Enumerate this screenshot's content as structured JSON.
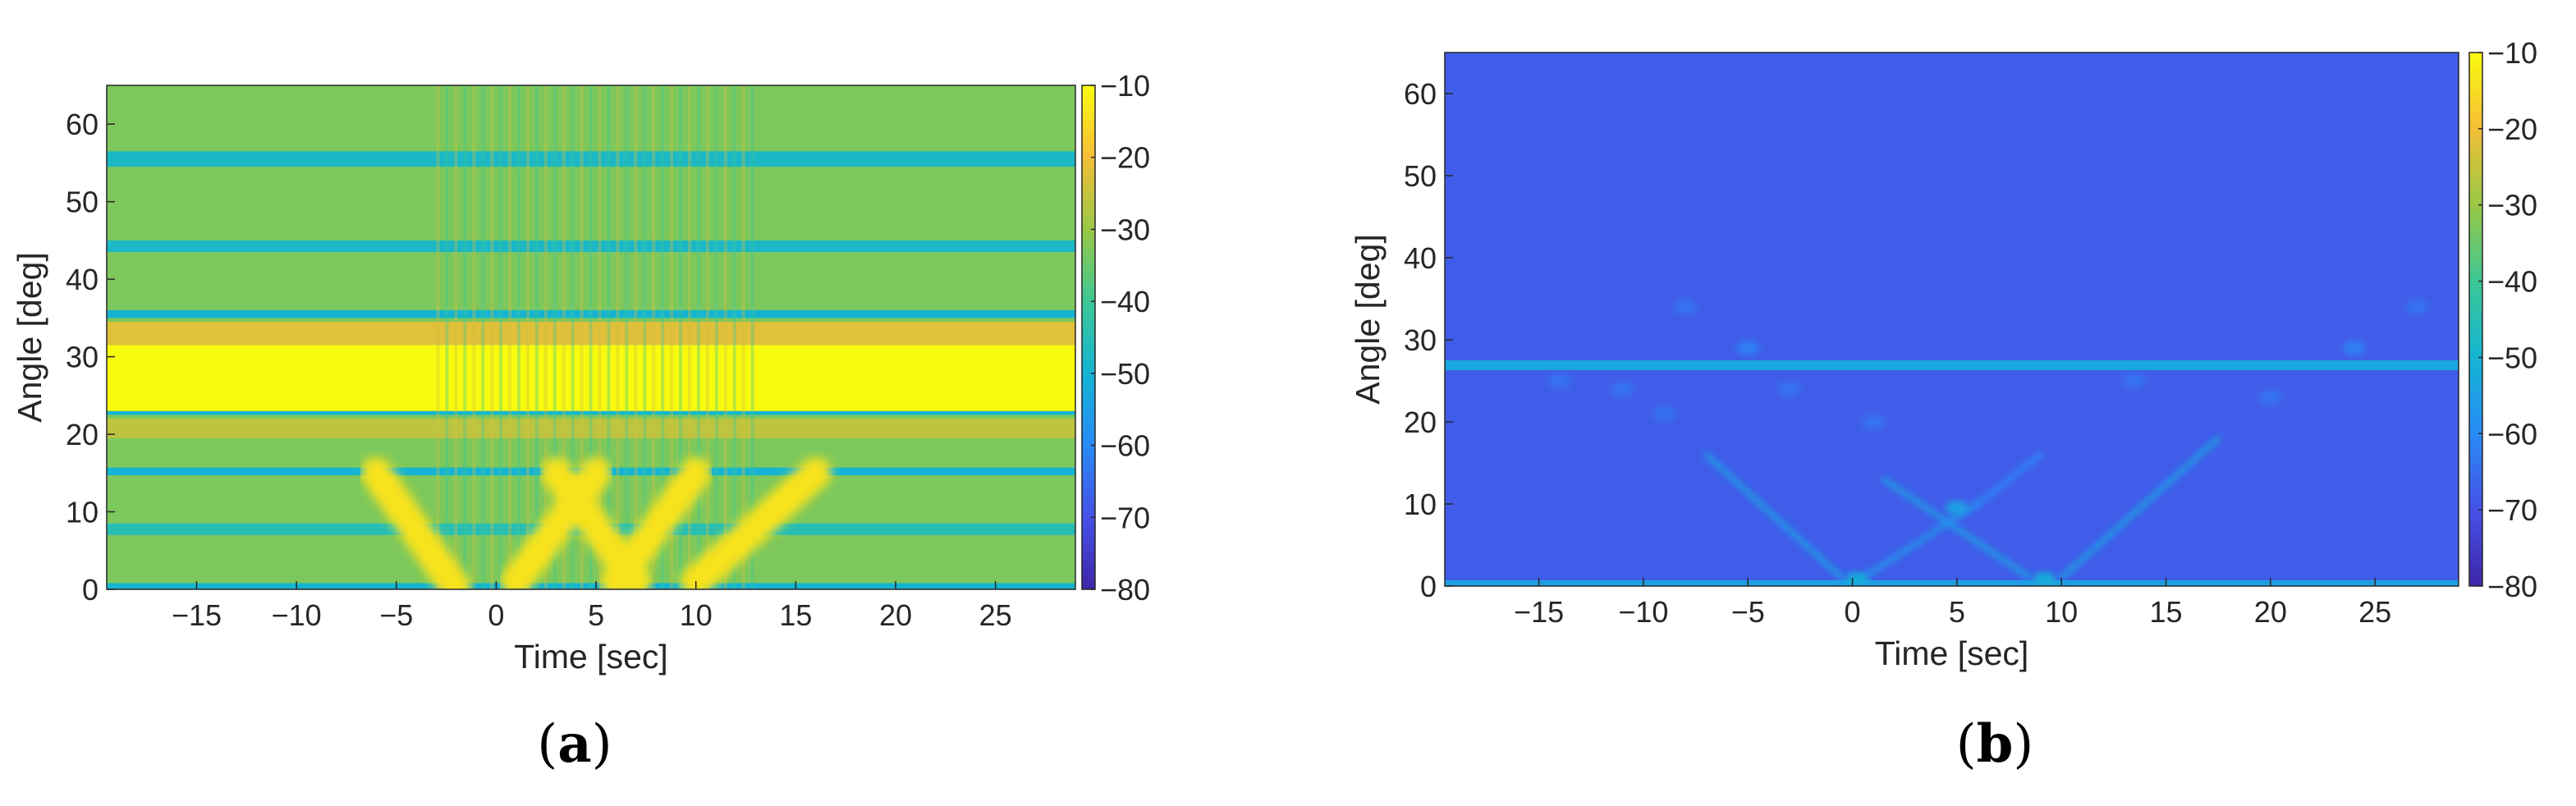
{
  "colors": {
    "parula_low": "#3e26a8",
    "parula_mid_blue": "#2d8bf5",
    "parula_teal": "#1cb0b5",
    "parula_green": "#7fca5a",
    "parula_orange": "#f5b73a",
    "parula_high": "#f9fb0e",
    "axis": "#262626"
  },
  "chart_data": [
    {
      "type": "heatmap",
      "panel_label_open": "(",
      "panel_label_letter": "a",
      "panel_label_close": ")",
      "xlabel": "Time [sec]",
      "ylabel": "Angle [deg]",
      "xlim": [
        -19.5,
        29
      ],
      "ylim": [
        0,
        65
      ],
      "x_ticks": [
        -15,
        -10,
        -5,
        0,
        5,
        10,
        15,
        20,
        25
      ],
      "x_tick_labels": [
        "−15",
        "−10",
        "−5",
        "0",
        "5",
        "10",
        "15",
        "20",
        "25"
      ],
      "y_ticks": [
        0,
        10,
        20,
        30,
        40,
        50,
        60
      ],
      "y_tick_labels": [
        "0",
        "10",
        "20",
        "30",
        "40",
        "50",
        "60"
      ],
      "colorbar": {
        "range": [
          -80,
          -10
        ],
        "ticks": [
          -10,
          -20,
          -30,
          -40,
          -50,
          -60,
          -70,
          -80
        ],
        "tick_labels": [
          "−10",
          "−20",
          "−30",
          "−40",
          "−50",
          "−60",
          "−70",
          "−80"
        ]
      },
      "background_db": -33,
      "horizontal_bands": [
        {
          "angle_from": 0,
          "angle_to": 0.8,
          "db": -50
        },
        {
          "angle_from": 7,
          "angle_to": 8.5,
          "db": -45
        },
        {
          "angle_from": 14.7,
          "angle_to": 15.7,
          "db": -50
        },
        {
          "angle_from": 19.5,
          "angle_to": 22,
          "db": -26
        },
        {
          "angle_from": 22.5,
          "angle_to": 23,
          "db": -50
        },
        {
          "angle_from": 23,
          "angle_to": 31.5,
          "db": -10
        },
        {
          "angle_from": 31.5,
          "angle_to": 34.5,
          "db": -22
        },
        {
          "angle_from": 35,
          "angle_to": 36,
          "db": -50
        },
        {
          "angle_from": 43.5,
          "angle_to": 45,
          "db": -48
        },
        {
          "angle_from": 54.5,
          "angle_to": 56.5,
          "db": -48
        }
      ],
      "bright_ridges": [
        {
          "t_start": -6,
          "a_start": 15,
          "t_end": -2,
          "a_end": 0,
          "db": -14
        },
        {
          "t_start": 3,
          "a_start": 15,
          "t_end": 7,
          "a_end": 1,
          "db": -14
        },
        {
          "t_start": 6,
          "a_start": 1,
          "t_end": 10,
          "a_end": 15,
          "db": -14
        },
        {
          "t_start": 1,
          "a_start": 1,
          "t_end": 5,
          "a_end": 15,
          "db": -14
        },
        {
          "t_start": 10,
          "a_start": 1,
          "t_end": 16,
          "a_end": 15,
          "db": -14
        }
      ]
    },
    {
      "type": "heatmap",
      "panel_label_open": "(",
      "panel_label_letter": "b",
      "panel_label_close": ")",
      "xlabel": "Time [sec]",
      "ylabel": "Angle [deg]",
      "xlim": [
        -19.5,
        29
      ],
      "ylim": [
        0,
        65
      ],
      "x_ticks": [
        -15,
        -10,
        -5,
        0,
        5,
        10,
        15,
        20,
        25
      ],
      "x_tick_labels": [
        "−15",
        "−10",
        "−5",
        "0",
        "5",
        "10",
        "15",
        "20",
        "25"
      ],
      "y_ticks": [
        0,
        10,
        20,
        30,
        40,
        50,
        60
      ],
      "y_tick_labels": [
        "0",
        "10",
        "20",
        "30",
        "40",
        "50",
        "60"
      ],
      "colorbar": {
        "range": [
          -80,
          -10
        ],
        "ticks": [
          -10,
          -20,
          -30,
          -40,
          -50,
          -60,
          -70,
          -80
        ],
        "tick_labels": [
          "−10",
          "−20",
          "−30",
          "−40",
          "−50",
          "−60",
          "−70",
          "−80"
        ]
      },
      "background_db": -68,
      "horizontal_bands": [
        {
          "angle_from": 26.3,
          "angle_to": 27.5,
          "db": -53
        },
        {
          "angle_from": 0,
          "angle_to": 0.7,
          "db": -55
        }
      ],
      "ridges": [
        {
          "t_start": -7,
          "a_start": 16,
          "t_end": -0.5,
          "a_end": 1,
          "db": -55
        },
        {
          "t_start": 1.5,
          "a_start": 13,
          "t_end": 8.5,
          "a_end": 1,
          "db": -55
        },
        {
          "t_start": 0.5,
          "a_start": 1,
          "t_end": 6,
          "a_end": 10,
          "db": -57
        },
        {
          "t_start": 6,
          "a_start": 10,
          "t_end": 9,
          "a_end": 16,
          "db": -60
        },
        {
          "t_start": 10,
          "a_start": 1,
          "t_end": 17.5,
          "a_end": 18,
          "db": -55
        }
      ],
      "blobs": [
        {
          "t": 0.2,
          "a": 0.8,
          "db": -52
        },
        {
          "t": 9.2,
          "a": 0.8,
          "db": -52
        },
        {
          "t": 5,
          "a": 9.5,
          "db": -55
        },
        {
          "t": -5,
          "a": 29,
          "db": -62
        },
        {
          "t": 24,
          "a": 29,
          "db": -62
        },
        {
          "t": -8,
          "a": 34,
          "db": -64
        },
        {
          "t": 27,
          "a": 34,
          "db": -64
        },
        {
          "t": -11,
          "a": 24,
          "db": -64
        },
        {
          "t": -14,
          "a": 25,
          "db": -64
        },
        {
          "t": -3,
          "a": 24,
          "db": -64
        },
        {
          "t": 13.5,
          "a": 25,
          "db": -64
        },
        {
          "t": 20,
          "a": 23,
          "db": -64
        },
        {
          "t": -9,
          "a": 21,
          "db": -64
        },
        {
          "t": 1,
          "a": 20,
          "db": -64
        }
      ]
    }
  ]
}
